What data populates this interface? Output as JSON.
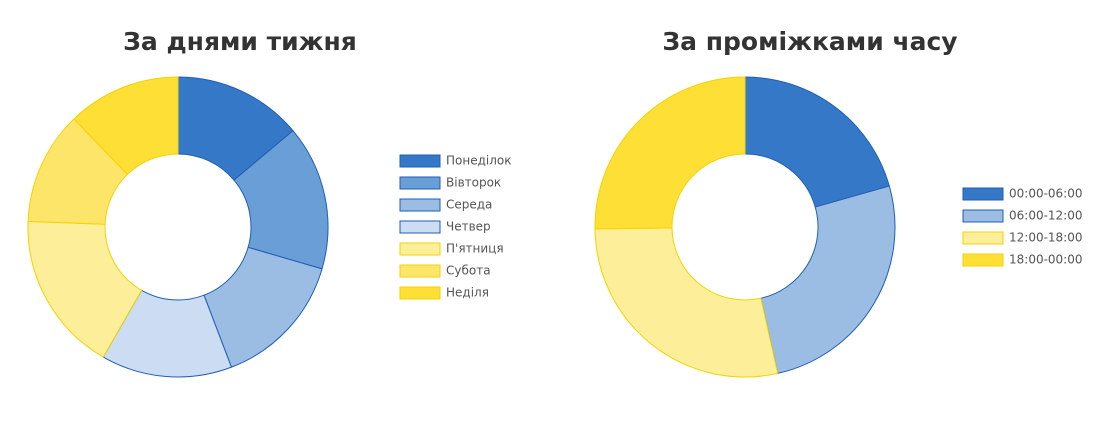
{
  "chart_data": [
    {
      "type": "doughnut",
      "title": "За днями тижня",
      "categories": [
        "Понеділок",
        "Вівторок",
        "Середа",
        "Четвер",
        "П'ятниця",
        "Субота",
        "Неділя"
      ],
      "values": [
        13.9,
        15.6,
        14.7,
        14.1,
        17.3,
        12.2,
        12.2
      ],
      "colors": [
        "#3578c8",
        "#6a9ed6",
        "#9bbde3",
        "#ccdcf2",
        "#fdee9a",
        "#fde56a",
        "#fddf35"
      ],
      "border_colors": [
        "#1f5fb5",
        "#1f5fb5",
        "#1f5fb5",
        "#1f5fb5",
        "#f5d300",
        "#f5d300",
        "#f5d300"
      ],
      "legend": "right"
    },
    {
      "type": "doughnut",
      "title": "За проміжками часу",
      "categories": [
        "00:00-06:00",
        "06:00-12:00",
        "12:00-18:00",
        "18:00-00:00"
      ],
      "values": [
        20.6,
        25.9,
        28.3,
        25.2
      ],
      "colors": [
        "#3578c8",
        "#9bbde3",
        "#fdee9a",
        "#fddf35"
      ],
      "border_colors": [
        "#1f5fb5",
        "#1f5fb5",
        "#f5d300",
        "#f5d300"
      ],
      "legend": "right"
    }
  ]
}
